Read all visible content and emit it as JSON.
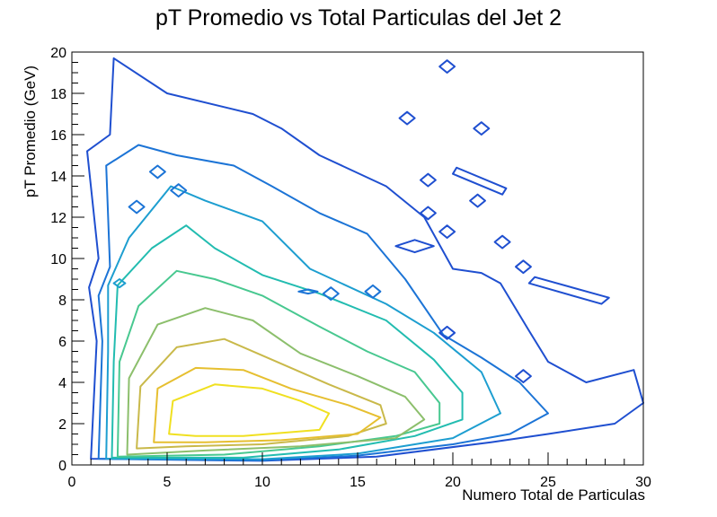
{
  "chart_data": {
    "type": "contour",
    "title": "pT Promedio vs Total Particulas del Jet 2",
    "xlabel": "Numero Total de Particulas",
    "ylabel": "pT Promedio (GeV)",
    "xlim": [
      0,
      30
    ],
    "ylim": [
      0,
      20
    ],
    "xticks": [
      "0",
      "5",
      "10",
      "15",
      "20",
      "25",
      "30"
    ],
    "yticks": [
      "0",
      "2",
      "4",
      "6",
      "8",
      "10",
      "12",
      "14",
      "16",
      "18",
      "20"
    ],
    "grid": false,
    "legend": "none",
    "peak": {
      "x": 8,
      "y": 2.3
    },
    "contours": [
      {
        "level": 1,
        "color": "#1f4fd0",
        "points": [
          [
            1.0,
            0.3
          ],
          [
            1.3,
            6
          ],
          [
            0.9,
            8.6
          ],
          [
            1.4,
            10
          ],
          [
            0.8,
            15.2
          ],
          [
            2,
            16
          ],
          [
            2.2,
            19.7
          ],
          [
            5,
            18
          ],
          [
            9.5,
            17
          ],
          [
            11,
            16.3
          ],
          [
            13,
            15
          ],
          [
            16.5,
            13.5
          ],
          [
            18.5,
            12
          ],
          [
            20,
            9.5
          ],
          [
            21.5,
            9.3
          ],
          [
            22.5,
            8.8
          ],
          [
            24,
            6.5
          ],
          [
            25,
            5
          ],
          [
            27,
            4
          ],
          [
            29.5,
            4.6
          ],
          [
            30,
            3
          ],
          [
            28.5,
            2
          ],
          [
            25,
            1.5
          ],
          [
            22,
            1.1
          ],
          [
            16,
            0.4
          ],
          [
            10,
            0.2
          ]
        ]
      },
      {
        "level": 2,
        "color": "#1c74d6",
        "points": [
          [
            1.4,
            0.3
          ],
          [
            1.6,
            6
          ],
          [
            1.4,
            8.2
          ],
          [
            2,
            9.6
          ],
          [
            1.8,
            14.5
          ],
          [
            3.5,
            15.5
          ],
          [
            5.5,
            15
          ],
          [
            8.5,
            14.5
          ],
          [
            10.5,
            13.5
          ],
          [
            13,
            12.2
          ],
          [
            15.5,
            11.2
          ],
          [
            17.5,
            9
          ],
          [
            19.5,
            6.3
          ],
          [
            21.5,
            5.2
          ],
          [
            23.5,
            4
          ],
          [
            25,
            2.5
          ],
          [
            23,
            1.5
          ],
          [
            20,
            1
          ],
          [
            15,
            0.45
          ],
          [
            10,
            0.22
          ]
        ]
      },
      {
        "level": 3,
        "color": "#1d9ed0",
        "points": [
          [
            1.8,
            0.3
          ],
          [
            1.9,
            5.5
          ],
          [
            1.9,
            8.7
          ],
          [
            3,
            11
          ],
          [
            5.2,
            13.5
          ],
          [
            7,
            12.8
          ],
          [
            10,
            11.8
          ],
          [
            12.5,
            9.5
          ],
          [
            16.5,
            7.8
          ],
          [
            19,
            6.4
          ],
          [
            21.5,
            4.5
          ],
          [
            22.5,
            2.5
          ],
          [
            20,
            1.3
          ],
          [
            15,
            0.55
          ],
          [
            10,
            0.28
          ]
        ]
      },
      {
        "level": 4,
        "color": "#22bcb0",
        "points": [
          [
            2.1,
            0.35
          ],
          [
            2.2,
            5
          ],
          [
            2.4,
            8.7
          ],
          [
            4.2,
            10.5
          ],
          [
            6,
            11.6
          ],
          [
            7.5,
            10.5
          ],
          [
            10,
            9.2
          ],
          [
            13,
            8.3
          ],
          [
            16.5,
            7
          ],
          [
            19,
            5.1
          ],
          [
            20.5,
            3.5
          ],
          [
            20.5,
            2.2
          ],
          [
            18,
            1.4
          ],
          [
            14,
            0.75
          ],
          [
            9,
            0.35
          ]
        ]
      },
      {
        "level": 5,
        "color": "#48c890",
        "points": [
          [
            2.4,
            0.4
          ],
          [
            2.5,
            5
          ],
          [
            3.5,
            7.7
          ],
          [
            5.5,
            9.4
          ],
          [
            7.5,
            9
          ],
          [
            10,
            8.2
          ],
          [
            13,
            6.7
          ],
          [
            15.5,
            5.5
          ],
          [
            18,
            4.5
          ],
          [
            19.3,
            3
          ],
          [
            19.3,
            2
          ],
          [
            17,
            1.4
          ],
          [
            13,
            0.9
          ],
          [
            8,
            0.5
          ]
        ]
      },
      {
        "level": 6,
        "color": "#8cbf6c",
        "points": [
          [
            2.9,
            0.5
          ],
          [
            3,
            4.2
          ],
          [
            4.5,
            6.8
          ],
          [
            7,
            7.6
          ],
          [
            9.5,
            7
          ],
          [
            12,
            5.4
          ],
          [
            15,
            4.3
          ],
          [
            17.5,
            3.3
          ],
          [
            18.5,
            2.2
          ],
          [
            17,
            1.3
          ],
          [
            12,
            0.9
          ],
          [
            7,
            0.7
          ]
        ]
      },
      {
        "level": 7,
        "color": "#c9b94a",
        "points": [
          [
            3.4,
            0.8
          ],
          [
            3.6,
            3.8
          ],
          [
            5.5,
            5.7
          ],
          [
            8,
            6.1
          ],
          [
            10.5,
            5.1
          ],
          [
            13.5,
            3.9
          ],
          [
            16.2,
            2.9
          ],
          [
            16.5,
            2
          ],
          [
            14.5,
            1.4
          ],
          [
            10,
            1
          ],
          [
            6,
            0.9
          ]
        ]
      },
      {
        "level": 8,
        "color": "#e6bf30",
        "points": [
          [
            4.3,
            1.1
          ],
          [
            4.5,
            3.7
          ],
          [
            6.5,
            4.7
          ],
          [
            9,
            4.6
          ],
          [
            11.5,
            3.7
          ],
          [
            14.5,
            2.9
          ],
          [
            16.2,
            2.3
          ],
          [
            15,
            1.5
          ],
          [
            11,
            1.2
          ],
          [
            7,
            1.1
          ]
        ]
      },
      {
        "level": 9,
        "color": "#f0e020",
        "points": [
          [
            5.1,
            1.5
          ],
          [
            5.3,
            3.1
          ],
          [
            7.5,
            3.9
          ],
          [
            10,
            3.7
          ],
          [
            12,
            3.1
          ],
          [
            13.5,
            2.5
          ],
          [
            13,
            1.7
          ],
          [
            9,
            1.4
          ],
          [
            6.5,
            1.4
          ]
        ]
      }
    ],
    "islands": [
      {
        "color": "#1f4fd0",
        "points": [
          [
            19.3,
            19.3
          ],
          [
            19.7,
            19.6
          ],
          [
            20.1,
            19.3
          ],
          [
            19.7,
            19.0
          ]
        ]
      },
      {
        "color": "#1f4fd0",
        "points": [
          [
            17.2,
            16.8
          ],
          [
            17.6,
            17.1
          ],
          [
            18.0,
            16.8
          ],
          [
            17.6,
            16.5
          ]
        ]
      },
      {
        "color": "#1f4fd0",
        "points": [
          [
            21.1,
            16.3
          ],
          [
            21.5,
            16.6
          ],
          [
            21.9,
            16.3
          ],
          [
            21.5,
            16.0
          ]
        ]
      },
      {
        "color": "#1f4fd0",
        "points": [
          [
            20.2,
            14.4
          ],
          [
            22.8,
            13.4
          ],
          [
            22.6,
            13.1
          ],
          [
            20.0,
            14.1
          ]
        ]
      },
      {
        "color": "#1f4fd0",
        "points": [
          [
            18.3,
            13.8
          ],
          [
            18.7,
            14.1
          ],
          [
            19.1,
            13.8
          ],
          [
            18.7,
            13.5
          ]
        ]
      },
      {
        "color": "#1f4fd0",
        "points": [
          [
            20.9,
            12.8
          ],
          [
            21.3,
            13.1
          ],
          [
            21.7,
            12.8
          ],
          [
            21.3,
            12.5
          ]
        ]
      },
      {
        "color": "#1f4fd0",
        "points": [
          [
            18.3,
            12.2
          ],
          [
            18.7,
            12.5
          ],
          [
            19.1,
            12.2
          ],
          [
            18.7,
            11.9
          ]
        ]
      },
      {
        "color": "#1f4fd0",
        "points": [
          [
            17.0,
            10.6
          ],
          [
            18.0,
            10.9
          ],
          [
            19.0,
            10.6
          ],
          [
            18.0,
            10.3
          ]
        ]
      },
      {
        "color": "#1f4fd0",
        "points": [
          [
            19.3,
            11.3
          ],
          [
            19.7,
            11.6
          ],
          [
            20.1,
            11.3
          ],
          [
            19.7,
            11.0
          ]
        ]
      },
      {
        "color": "#1f4fd0",
        "points": [
          [
            22.2,
            10.8
          ],
          [
            22.6,
            11.1
          ],
          [
            23.0,
            10.8
          ],
          [
            22.6,
            10.5
          ]
        ]
      },
      {
        "color": "#1f4fd0",
        "points": [
          [
            23.3,
            9.6
          ],
          [
            23.7,
            9.9
          ],
          [
            24.1,
            9.6
          ],
          [
            23.7,
            9.3
          ]
        ]
      },
      {
        "color": "#1f4fd0",
        "points": [
          [
            24.3,
            9.1
          ],
          [
            28.2,
            8.1
          ],
          [
            27.8,
            7.8
          ],
          [
            24.0,
            8.8
          ]
        ]
      },
      {
        "color": "#1f4fd0",
        "points": [
          [
            23.3,
            4.3
          ],
          [
            23.7,
            4.6
          ],
          [
            24.1,
            4.3
          ],
          [
            23.7,
            4.0
          ]
        ]
      },
      {
        "color": "#1f4fd0",
        "points": [
          [
            19.3,
            6.4
          ],
          [
            19.7,
            6.7
          ],
          [
            20.1,
            6.4
          ],
          [
            19.7,
            6.1
          ]
        ]
      },
      {
        "color": "#1c74d6",
        "points": [
          [
            5.2,
            13.3
          ],
          [
            5.6,
            13.6
          ],
          [
            6.0,
            13.3
          ],
          [
            5.6,
            13.0
          ]
        ]
      },
      {
        "color": "#1c74d6",
        "points": [
          [
            4.1,
            14.2
          ],
          [
            4.5,
            14.5
          ],
          [
            4.9,
            14.2
          ],
          [
            4.5,
            13.9
          ]
        ]
      },
      {
        "color": "#1c74d6",
        "points": [
          [
            13.2,
            8.3
          ],
          [
            13.6,
            8.6
          ],
          [
            14.0,
            8.3
          ],
          [
            13.6,
            8.0
          ]
        ]
      },
      {
        "color": "#1c74d6",
        "points": [
          [
            15.4,
            8.4
          ],
          [
            15.8,
            8.7
          ],
          [
            16.2,
            8.4
          ],
          [
            15.8,
            8.1
          ]
        ]
      },
      {
        "color": "#1c74d6",
        "points": [
          [
            3.0,
            12.5
          ],
          [
            3.4,
            12.8
          ],
          [
            3.8,
            12.5
          ],
          [
            3.4,
            12.2
          ]
        ]
      },
      {
        "color": "#1c74d6",
        "points": [
          [
            11.9,
            8.4
          ],
          [
            12.4,
            8.5
          ],
          [
            12.9,
            8.4
          ],
          [
            12.4,
            8.3
          ]
        ]
      },
      {
        "color": "#1d9ed0",
        "points": [
          [
            2.2,
            8.8
          ],
          [
            2.5,
            9.0
          ],
          [
            2.8,
            8.8
          ],
          [
            2.5,
            8.6
          ]
        ]
      }
    ]
  }
}
